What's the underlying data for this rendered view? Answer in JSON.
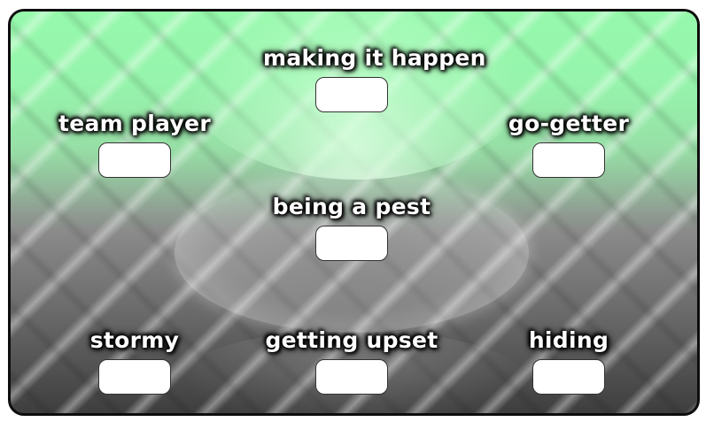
{
  "nodes": {
    "making_it_happen": {
      "label": "making it happen"
    },
    "team_player": {
      "label": "team player"
    },
    "go_getter": {
      "label": "go-getter"
    },
    "being_a_pest": {
      "label": "being a pest"
    },
    "stormy": {
      "label": "stormy"
    },
    "getting_upset": {
      "label": "getting upset"
    },
    "hiding": {
      "label": "hiding"
    }
  },
  "colors": {
    "top_background": "#a8edb8",
    "bottom_background": "#3e3e3e",
    "border": "#0d0d0d",
    "label_text": "#ffffff",
    "input_box": "#ffffff"
  }
}
